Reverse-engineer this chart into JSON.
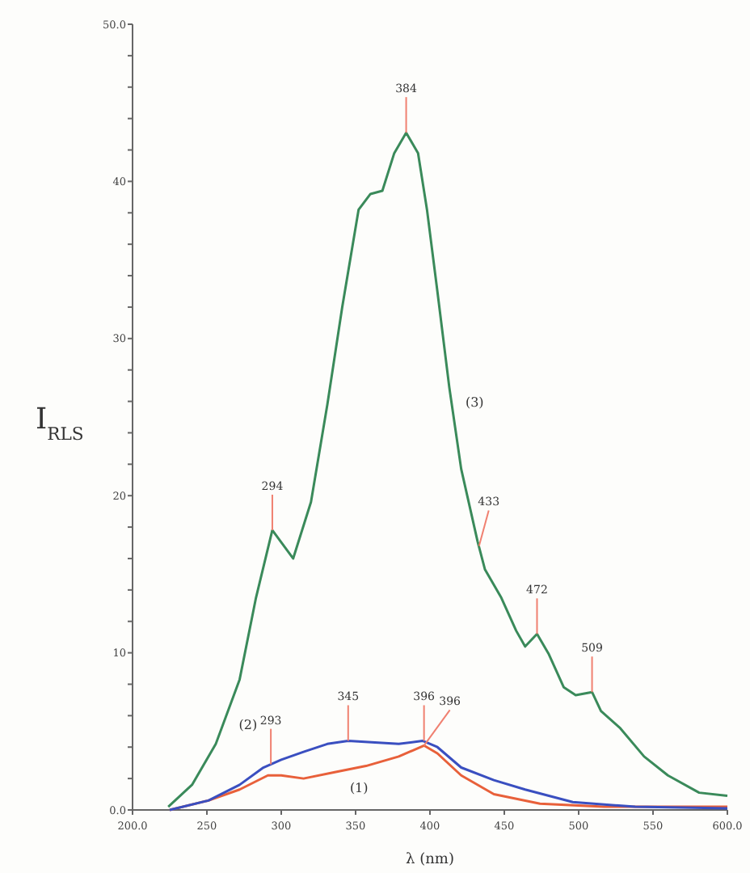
{
  "chart_data": {
    "type": "line",
    "xlabel": "λ (nm)",
    "ylabel": "I$_{RLS}$",
    "xlim": [
      200,
      600
    ],
    "ylim": [
      0,
      50
    ],
    "xticks": [
      {
        "value": 200,
        "label": "200.0"
      },
      250,
      300,
      350,
      400,
      450,
      500,
      550,
      {
        "value": 600,
        "label": "600.0"
      }
    ],
    "yticks": [
      {
        "value": 0,
        "label": "0.0"
      },
      {
        "value": 2,
        "label": null
      },
      {
        "value": 4,
        "label": null
      },
      {
        "value": 6,
        "label": null
      },
      {
        "value": 8,
        "label": null
      },
      10,
      {
        "value": 12,
        "label": null
      },
      {
        "value": 14,
        "label": null
      },
      {
        "value": 16,
        "label": null
      },
      {
        "value": 18,
        "label": null
      },
      20,
      {
        "value": 22,
        "label": null
      },
      {
        "value": 24,
        "label": null
      },
      {
        "value": 26,
        "label": null
      },
      {
        "value": 28,
        "label": null
      },
      30,
      {
        "value": 32,
        "label": null
      },
      {
        "value": 34,
        "label": null
      },
      {
        "value": 36,
        "label": null
      },
      {
        "value": 38,
        "label": null
      },
      40,
      {
        "value": 42,
        "label": null
      },
      {
        "value": 44,
        "label": null
      },
      {
        "value": 46,
        "label": null
      },
      {
        "value": 48,
        "label": null
      },
      {
        "value": 50,
        "label": "50.0"
      }
    ],
    "grid": false,
    "series": [
      {
        "name": "(1)",
        "color": "#e8603a",
        "x": [
          225,
          251,
          272,
          291,
          300,
          315,
          336,
          357,
          379,
          396,
          405,
          421,
          443,
          474,
          517,
          600
        ],
        "values": [
          0,
          0.6,
          1.3,
          2.2,
          2.2,
          2.0,
          2.4,
          2.8,
          3.4,
          4.1,
          3.6,
          2.2,
          1.0,
          0.4,
          0.2,
          0.2
        ]
      },
      {
        "name": "(2)",
        "color": "#3a4fc0",
        "x": [
          225,
          251,
          272,
          288,
          300,
          315,
          331,
          345,
          363,
          379,
          395,
          405,
          421,
          443,
          464,
          496,
          538,
          600
        ],
        "values": [
          0,
          0.6,
          1.6,
          2.7,
          3.2,
          3.7,
          4.2,
          4.4,
          4.3,
          4.2,
          4.4,
          4.0,
          2.7,
          1.9,
          1.3,
          0.5,
          0.2,
          0.1
        ]
      },
      {
        "name": "(3)",
        "color": "#3a8a5a",
        "x": [
          224,
          240,
          256,
          272,
          283,
          294,
          308,
          320,
          331,
          341,
          352,
          360,
          368,
          376,
          384,
          392,
          398,
          405,
          413,
          421,
          432,
          437,
          448,
          458,
          464,
          472,
          480,
          490,
          498,
          509,
          515,
          528,
          544,
          560,
          581,
          600
        ],
        "values": [
          0.2,
          1.6,
          4.2,
          8.3,
          13.5,
          17.8,
          16.0,
          19.6,
          25.8,
          32,
          38.2,
          39.2,
          39.4,
          41.8,
          43.1,
          41.8,
          38.2,
          33,
          26.9,
          21.7,
          17.1,
          15.3,
          13.5,
          11.4,
          10.4,
          11.2,
          9.9,
          7.8,
          7.3,
          7.5,
          6.3,
          5.2,
          3.4,
          2.2,
          1.1,
          0.9
        ]
      }
    ],
    "annotations": [
      {
        "text": "294",
        "x": 294,
        "y": 17.8
      },
      {
        "text": "384",
        "x": 384,
        "y": 43.1
      },
      {
        "text": "433",
        "x": 433,
        "y": 16.8
      },
      {
        "text": "472",
        "x": 472,
        "y": 11.2
      },
      {
        "text": "509",
        "x": 509,
        "y": 7.5
      },
      {
        "text": "293",
        "x": 293,
        "y": 2.9
      },
      {
        "text": "345",
        "x": 345,
        "y": 4.4
      },
      {
        "text": "396",
        "x": 396,
        "y": 4.4
      },
      {
        "text": "396",
        "x": 396,
        "y": 4.1
      }
    ]
  }
}
